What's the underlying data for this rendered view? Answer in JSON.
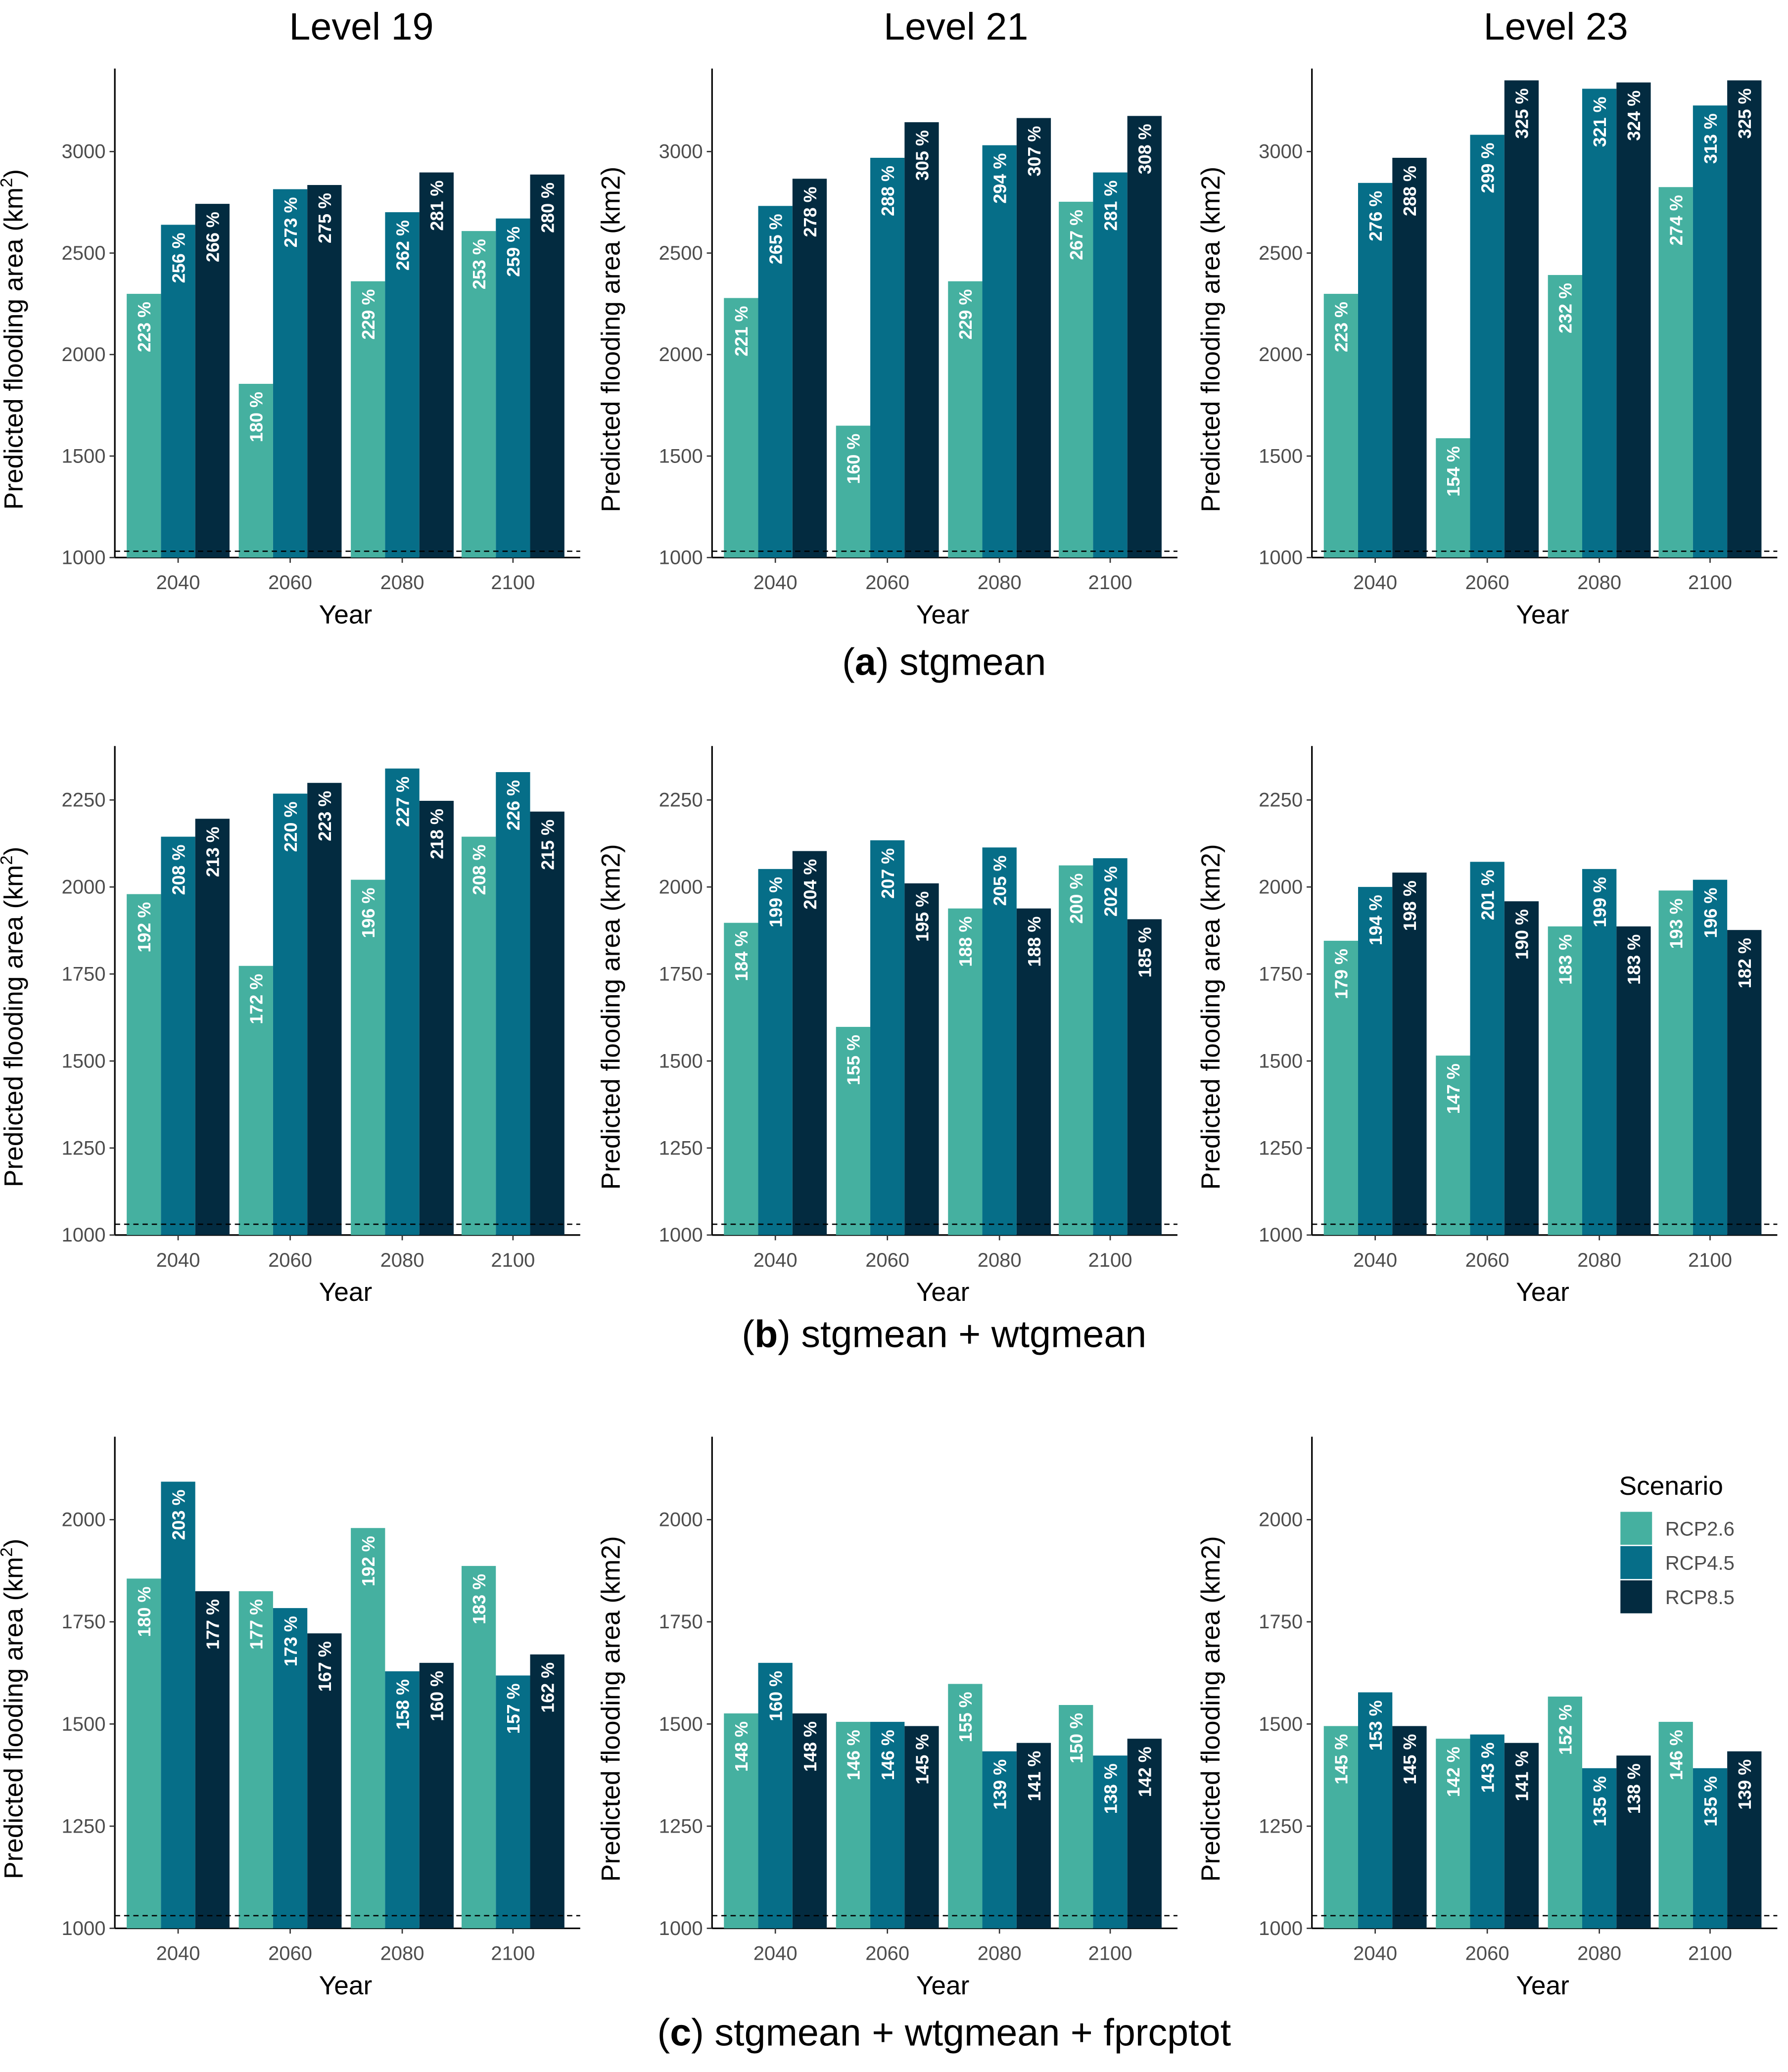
{
  "chart_data": {
    "type": "bar",
    "column_titles": [
      "Level 19",
      "Level 21",
      "Level 23"
    ],
    "row_captions": [
      {
        "letter": "a",
        "rest": " stgmean"
      },
      {
        "letter": "b",
        "rest": " stgmean + wtgmean"
      },
      {
        "letter": "c",
        "rest": " stgmean + wtgmean + fprcptot"
      }
    ],
    "categories": [
      "2040",
      "2060",
      "2080",
      "2100"
    ],
    "xlabel": "Year",
    "ylabels": [
      "Predicted flooding area (km",
      "Predicted flooding area (km2)",
      "Predicted flooding area (km2)"
    ],
    "ylabel_superscript": "2",
    "ylabel_close": ")",
    "baseline_dashed": 1031,
    "series_names": [
      "RCP2.6",
      "RCP4.5",
      "RCP8.5"
    ],
    "colors": [
      "#45B0A0",
      "#066E88",
      "#032B40"
    ],
    "legend": {
      "title": "Scenario",
      "placement": "top-right of panel (c) Level 23"
    },
    "rows": [
      {
        "ylim": [
          1000,
          3409
        ],
        "ticks": [
          "1000",
          "1500",
          "2000",
          "2500",
          "3000"
        ],
        "panels": [
          [
            [
              223,
              256,
              266
            ],
            [
              180,
              273,
              275
            ],
            [
              229,
              262,
              281
            ],
            [
              253,
              259,
              280
            ]
          ],
          [
            [
              221,
              265,
              278
            ],
            [
              160,
              288,
              305
            ],
            [
              229,
              294,
              307
            ],
            [
              267,
              281,
              308
            ]
          ],
          [
            [
              223,
              276,
              288
            ],
            [
              154,
              299,
              325
            ],
            [
              232,
              321,
              324
            ],
            [
              274,
              313,
              325
            ]
          ]
        ]
      },
      {
        "ylim": [
          1000,
          2405
        ],
        "ticks": [
          "1000",
          "1250",
          "1500",
          "1750",
          "2000",
          "2250"
        ],
        "panels": [
          [
            [
              192,
              208,
              213
            ],
            [
              172,
              220,
              223
            ],
            [
              196,
              227,
              218
            ],
            [
              208,
              226,
              215
            ]
          ],
          [
            [
              184,
              199,
              204
            ],
            [
              155,
              207,
              195
            ],
            [
              188,
              205,
              188
            ],
            [
              200,
              202,
              185
            ]
          ],
          [
            [
              179,
              194,
              198
            ],
            [
              147,
              201,
              190
            ],
            [
              183,
              199,
              183
            ],
            [
              193,
              196,
              182
            ]
          ]
        ]
      },
      {
        "ylim": [
          1000,
          2203
        ],
        "ticks": [
          "1000",
          "1250",
          "1500",
          "1750",
          "2000"
        ],
        "panels": [
          [
            [
              180,
              203,
              177
            ],
            [
              177,
              173,
              167
            ],
            [
              192,
              158,
              160
            ],
            [
              183,
              157,
              162
            ]
          ],
          [
            [
              148,
              160,
              148
            ],
            [
              146,
              146,
              145
            ],
            [
              155,
              139,
              141
            ],
            [
              150,
              138,
              142
            ]
          ],
          [
            [
              145,
              153,
              145
            ],
            [
              142,
              143,
              141
            ],
            [
              152,
              135,
              138
            ],
            [
              146,
              135,
              139
            ]
          ]
        ]
      }
    ],
    "value_rule": "bar value = baseline_dashed * percent / 100; label text = percent + ' %'"
  }
}
